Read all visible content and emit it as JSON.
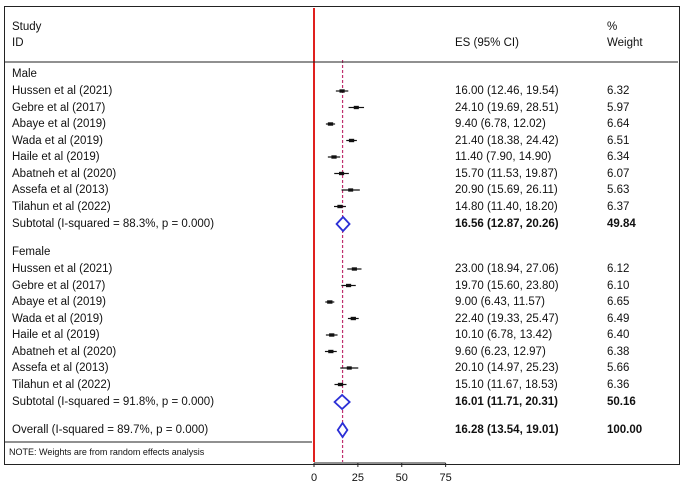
{
  "chart_data": {
    "type": "forest",
    "header": {
      "col1_line1": "Study",
      "col1_line2": "ID",
      "es_label": "ES (95% CI)",
      "weight_line1": "%",
      "weight_line2": "Weight"
    },
    "null_line": 0,
    "reference_line": 16.28,
    "xticks": [
      0,
      25,
      50,
      75
    ],
    "xlim": [
      0,
      75
    ],
    "subgroups": [
      {
        "label": "Male",
        "studies": [
          {
            "study": "Hussen et al (2021)",
            "es": 16.0,
            "lo": 12.46,
            "hi": 19.54,
            "es_text": "16.00 (12.46, 19.54)",
            "weight": "6.32"
          },
          {
            "study": "Gebre et al (2017)",
            "es": 24.1,
            "lo": 19.69,
            "hi": 28.51,
            "es_text": "24.10 (19.69, 28.51)",
            "weight": "5.97"
          },
          {
            "study": "Abaye et al (2019)",
            "es": 9.4,
            "lo": 6.78,
            "hi": 12.02,
            "es_text": "9.40 (6.78, 12.02)",
            "weight": "6.64"
          },
          {
            "study": "Wada et al (2019)",
            "es": 21.4,
            "lo": 18.38,
            "hi": 24.42,
            "es_text": "21.40 (18.38, 24.42)",
            "weight": "6.51"
          },
          {
            "study": "Haile et al (2019)",
            "es": 11.4,
            "lo": 7.9,
            "hi": 14.9,
            "es_text": "11.40 (7.90, 14.90)",
            "weight": "6.34"
          },
          {
            "study": "Abatneh et al (2020)",
            "es": 15.7,
            "lo": 11.53,
            "hi": 19.87,
            "es_text": "15.70 (11.53, 19.87)",
            "weight": "6.07"
          },
          {
            "study": "Assefa et al (2013)",
            "es": 20.9,
            "lo": 15.69,
            "hi": 26.11,
            "es_text": "20.90 (15.69, 26.11)",
            "weight": "5.63"
          },
          {
            "study": "Tilahun et al (2022)",
            "es": 14.8,
            "lo": 11.4,
            "hi": 18.2,
            "es_text": "14.80 (11.40, 18.20)",
            "weight": "6.37"
          }
        ],
        "subtotal": {
          "label": "Subtotal  (I-squared = 88.3%, p = 0.000)",
          "es": 16.56,
          "lo": 12.87,
          "hi": 20.26,
          "es_text": "16.56 (12.87, 20.26)",
          "weight": "49.84"
        }
      },
      {
        "label": "Female",
        "studies": [
          {
            "study": "Hussen et al (2021)",
            "es": 23.0,
            "lo": 18.94,
            "hi": 27.06,
            "es_text": "23.00 (18.94, 27.06)",
            "weight": "6.12"
          },
          {
            "study": "Gebre et al (2017)",
            "es": 19.7,
            "lo": 15.6,
            "hi": 23.8,
            "es_text": "19.70 (15.60, 23.80)",
            "weight": "6.10"
          },
          {
            "study": "Abaye et al (2019)",
            "es": 9.0,
            "lo": 6.43,
            "hi": 11.57,
            "es_text": "9.00 (6.43, 11.57)",
            "weight": "6.65"
          },
          {
            "study": "Wada et al (2019)",
            "es": 22.4,
            "lo": 19.33,
            "hi": 25.47,
            "es_text": "22.40 (19.33, 25.47)",
            "weight": "6.49"
          },
          {
            "study": "Haile et al (2019)",
            "es": 10.1,
            "lo": 6.78,
            "hi": 13.42,
            "es_text": "10.10 (6.78, 13.42)",
            "weight": "6.40"
          },
          {
            "study": "Abatneh et al (2020)",
            "es": 9.6,
            "lo": 6.23,
            "hi": 12.97,
            "es_text": "9.60 (6.23, 12.97)",
            "weight": "6.38"
          },
          {
            "study": "Assefa et al (2013)",
            "es": 20.1,
            "lo": 14.97,
            "hi": 25.23,
            "es_text": "20.10 (14.97, 25.23)",
            "weight": "5.66"
          },
          {
            "study": "Tilahun et al (2022)",
            "es": 15.1,
            "lo": 11.67,
            "hi": 18.53,
            "es_text": "15.10 (11.67, 18.53)",
            "weight": "6.36"
          }
        ],
        "subtotal": {
          "label": "Subtotal  (I-squared = 91.8%, p = 0.000)",
          "es": 16.01,
          "lo": 11.71,
          "hi": 20.31,
          "es_text": "16.01 (11.71, 20.31)",
          "weight": "50.16"
        }
      }
    ],
    "overall": {
      "label": "Overall  (I-squared = 89.7%, p = 0.000)",
      "es": 16.28,
      "lo": 13.54,
      "hi": 19.01,
      "es_text": "16.28 (13.54, 19.01)",
      "weight": "100.00"
    },
    "note": "NOTE: Weights are from random effects analysis",
    "colors": {
      "null_line": "#e0201e",
      "reference_line": "#c0306f",
      "diamond": "#2b2fd6",
      "marker": "#111111"
    }
  }
}
